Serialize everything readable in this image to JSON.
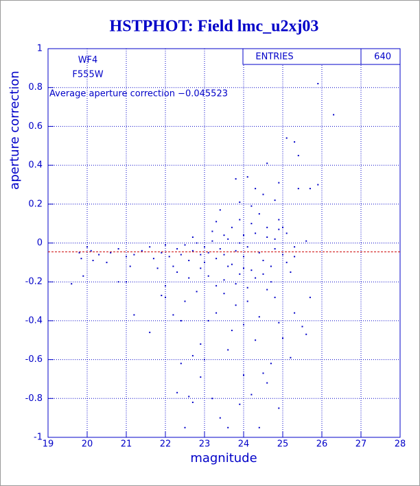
{
  "chart_data": {
    "type": "scatter",
    "title": "HSTPHOT: Field lmc_u2xj03",
    "xlabel": "magnitude",
    "ylabel": "aperture correction",
    "annotations": [
      "WF4",
      "F555W"
    ],
    "average_line": {
      "value": -0.045523,
      "label": "Average aperture correction −0.045523"
    },
    "stats": {
      "label": "ENTRIES",
      "value": 640
    },
    "color": "#0000c8",
    "line_color": "#cc0000",
    "grid": true,
    "xlim": [
      19,
      28
    ],
    "ylim": [
      -1,
      1
    ],
    "xticks": [
      19,
      20,
      21,
      22,
      23,
      24,
      25,
      26,
      27,
      28
    ],
    "yticks": [
      -1,
      -0.8,
      -0.6,
      -0.4,
      -0.2,
      0,
      0.2,
      0.4,
      0.6,
      0.8,
      1
    ],
    "x": [
      25.9,
      26.3,
      25.1,
      25.3,
      25.4,
      24.6,
      24.1,
      24.9,
      25.9,
      25.4,
      25.7,
      23.8,
      23.4,
      24.3,
      24.8,
      25.6,
      24.5,
      24.2,
      23.9,
      24.4,
      24.9,
      25.0,
      25.1,
      25.3,
      22.5,
      24.4,
      23.6,
      23.4,
      24.9,
      23.9,
      22.7,
      23.2,
      24.2,
      22.3,
      22.6,
      24.6,
      22.9,
      24.0,
      22.4,
      23.0,
      24.5,
      24.7,
      25.2,
      22.7,
      23.6,
      22.9,
      24.3,
      25.0,
      25.6,
      23.7,
      21.6,
      23.1,
      22.4,
      24.4,
      25.3,
      21.2,
      22.2,
      23.3,
      24.0,
      24.9,
      25.5,
      23.8,
      22.5,
      22.0,
      21.9,
      22.8,
      23.5,
      24.1,
      24.8,
      25.7,
      24.6,
      20.8,
      21.0,
      19.6,
      19.9,
      19.8,
      20.0,
      20.1,
      20.3,
      20.6,
      20.8,
      21.0,
      21.2,
      21.4,
      21.6,
      21.7,
      21.9,
      22.0,
      22.1,
      22.2,
      22.3,
      22.4,
      22.5,
      22.6,
      22.7,
      22.8,
      22.9,
      23.0,
      23.0,
      23.1,
      23.2,
      23.3,
      23.4,
      23.5,
      23.6,
      23.7,
      23.8,
      23.9,
      24.0,
      24.0,
      24.1,
      24.2,
      24.3,
      24.4,
      24.5,
      24.6,
      24.7,
      24.8,
      24.9,
      25.0,
      25.1,
      25.2,
      25.3,
      22.3,
      22.6,
      23.1,
      23.5,
      23.9,
      24.3,
      24.7,
      22.0,
      23.3,
      23.8,
      24.1,
      24.5,
      21.8,
      22.9,
      23.6,
      24.0,
      23.2,
      23.7,
      24.2,
      24.6,
      23.3,
      23.9,
      24.8,
      22.7,
      23.5,
      20.5,
      21.1,
      19.85,
      20.15
    ],
    "y": [
      0.82,
      0.66,
      0.54,
      0.52,
      0.45,
      0.41,
      0.34,
      0.31,
      0.3,
      0.28,
      0.28,
      0.33,
      0.17,
      0.28,
      0.22,
      0.01,
      0.25,
      0.19,
      0.21,
      0.15,
      0.12,
      0.08,
      0.05,
      -0.02,
      -0.95,
      -0.95,
      -0.95,
      -0.9,
      -0.85,
      -0.83,
      -0.82,
      -0.8,
      -0.78,
      -0.77,
      -0.79,
      -0.72,
      -0.69,
      -0.68,
      -0.62,
      -0.6,
      -0.67,
      -0.62,
      -0.59,
      -0.58,
      -0.55,
      -0.52,
      -0.5,
      -0.49,
      -0.47,
      -0.45,
      -0.46,
      -0.4,
      -0.4,
      -0.38,
      -0.36,
      -0.37,
      -0.37,
      -0.36,
      -0.42,
      -0.41,
      -0.43,
      -0.32,
      -0.3,
      -0.28,
      -0.27,
      -0.25,
      -0.26,
      -0.3,
      -0.28,
      -0.28,
      -0.24,
      -0.2,
      -0.2,
      -0.21,
      -0.17,
      -0.05,
      -0.02,
      -0.04,
      -0.06,
      -0.05,
      -0.03,
      -0.07,
      -0.06,
      -0.04,
      -0.02,
      -0.08,
      -0.05,
      -0.01,
      -0.07,
      -0.12,
      -0.03,
      -0.06,
      -0.01,
      -0.09,
      -0.04,
      0.0,
      -0.06,
      -0.02,
      -0.1,
      -0.05,
      0.01,
      -0.08,
      -0.03,
      -0.06,
      0.02,
      -0.11,
      -0.04,
      0.0,
      -0.07,
      0.04,
      -0.02,
      -0.14,
      0.05,
      -0.05,
      -0.09,
      0.03,
      -0.12,
      -0.03,
      0.07,
      -0.06,
      -0.1,
      -0.15,
      -0.07,
      -0.15,
      -0.18,
      -0.17,
      -0.19,
      -0.16,
      -0.18,
      -0.2,
      -0.22,
      -0.22,
      -0.21,
      -0.23,
      -0.16,
      -0.13,
      -0.13,
      -0.12,
      -0.13,
      0.06,
      0.08,
      0.1,
      0.08,
      0.11,
      0.12,
      0.02,
      0.03,
      0.04,
      -0.1,
      -0.12,
      -0.08,
      -0.09
    ]
  }
}
